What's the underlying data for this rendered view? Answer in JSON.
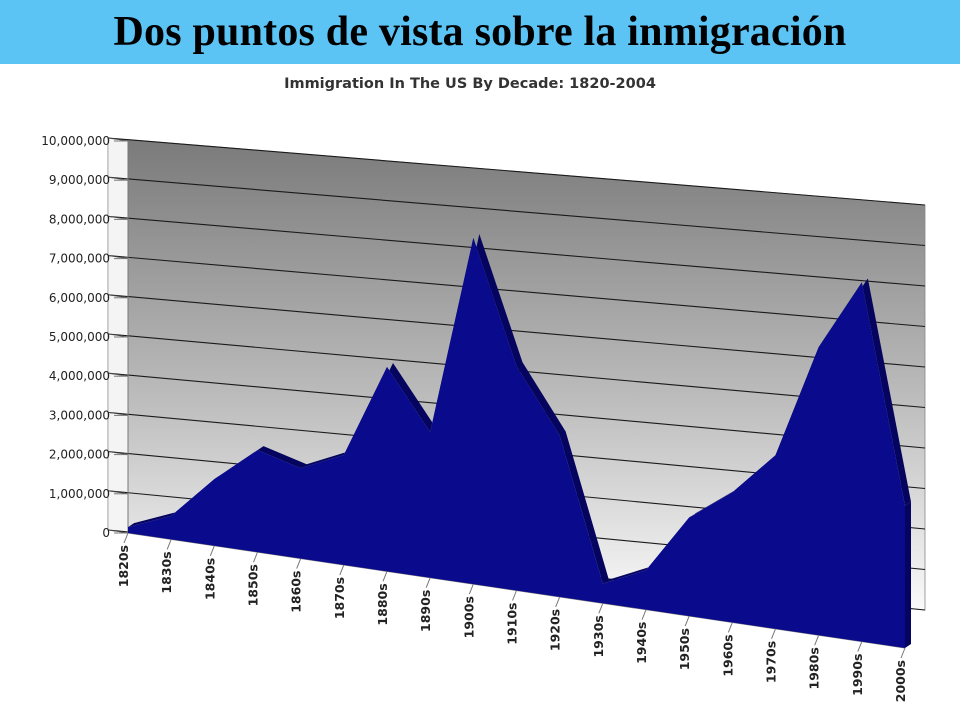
{
  "slide": {
    "title": "Dos puntos de vista sobre la inmigración"
  },
  "colors": {
    "title_bar": "#5cc4f4",
    "area_fill": "#0a0a8c",
    "area_side": "#050560"
  },
  "chart_data": {
    "type": "area",
    "title": "Immigration In The US By Decade: 1820-2004",
    "xlabel": "",
    "ylabel": "",
    "categories": [
      "1820s",
      "1830s",
      "1840s",
      "1850s",
      "1860s",
      "1870s",
      "1880s",
      "1890s",
      "1900s",
      "1910s",
      "1920s",
      "1930s",
      "1940s",
      "1950s",
      "1960s",
      "1970s",
      "1980s",
      "1990s",
      "2000s"
    ],
    "values": [
      150000,
      600000,
      1700000,
      2600000,
      2300000,
      2800000,
      5200000,
      3700000,
      8800000,
      5700000,
      4100000,
      500000,
      1000000,
      2500000,
      3300000,
      4400000,
      7300000,
      9100000,
      3600000
    ],
    "ylim": [
      0,
      10000000
    ],
    "yticks": [
      "0",
      "1,000,000",
      "2,000,000",
      "3,000,000",
      "4,000,000",
      "5,000,000",
      "6,000,000",
      "7,000,000",
      "8,000,000",
      "9,000,000",
      "10,000,000"
    ],
    "grid": true,
    "legend": "none",
    "style": "3d-area"
  }
}
